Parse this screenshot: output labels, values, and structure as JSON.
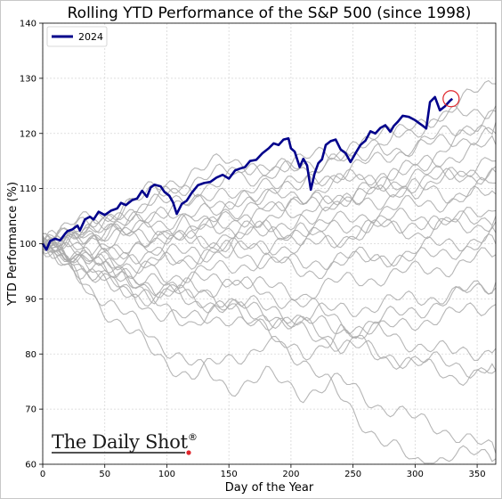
{
  "chart_data": {
    "type": "line",
    "title": "Rolling YTD Performance of the S&P 500 (since 1998)",
    "xlabel": "Day of the Year",
    "ylabel": "YTD Performance (%)",
    "xlim": [
      0,
      365
    ],
    "ylim": [
      60,
      140
    ],
    "xticks": [
      0,
      50,
      100,
      150,
      200,
      250,
      300,
      350
    ],
    "yticks": [
      60,
      70,
      80,
      90,
      100,
      110,
      120,
      130,
      140
    ],
    "grid": true,
    "legend": {
      "placement": "top-left",
      "entries": [
        "2024"
      ]
    },
    "highlight_series": {
      "name": "2024",
      "color": "#00008b",
      "x": [
        0,
        3,
        6,
        10,
        14,
        18,
        20,
        24,
        28,
        30,
        34,
        38,
        41,
        45,
        50,
        55,
        60,
        63,
        67,
        72,
        76,
        80,
        84,
        87,
        90,
        95,
        98,
        102,
        105,
        108,
        112,
        116,
        120,
        125,
        130,
        135,
        140,
        145,
        150,
        155,
        160,
        163,
        167,
        172,
        177,
        182,
        186,
        190,
        194,
        198,
        200,
        203,
        207,
        210,
        213,
        216,
        219,
        222,
        225,
        228,
        232,
        236,
        240,
        244,
        248,
        252,
        256,
        260,
        264,
        268,
        272,
        276,
        280,
        283,
        286,
        290,
        295,
        300,
        305,
        309,
        312,
        316,
        320,
        324,
        328,
        330
      ],
      "y": [
        100,
        98.9,
        100.5,
        100.9,
        100.6,
        101.8,
        102.3,
        102.6,
        103.3,
        102.4,
        104.4,
        104.9,
        104.4,
        105.8,
        105.2,
        106.0,
        106.4,
        107.4,
        107.0,
        107.9,
        108.2,
        109.6,
        108.5,
        110.2,
        110.7,
        110.4,
        109.4,
        108.7,
        107.5,
        105.4,
        107.2,
        107.8,
        109.2,
        110.6,
        111.0,
        111.2,
        112.0,
        112.5,
        111.8,
        113.3,
        113.7,
        113.9,
        115.0,
        115.2,
        116.4,
        117.3,
        118.2,
        117.9,
        118.9,
        119.1,
        117.3,
        116.7,
        113.9,
        115.4,
        114.2,
        109.8,
        112.7,
        114.6,
        115.3,
        117.9,
        118.6,
        118.9,
        117.1,
        116.4,
        114.8,
        116.4,
        117.9,
        118.7,
        120.4,
        120.0,
        121.0,
        121.5,
        120.3,
        121.4,
        122.1,
        123.2,
        123.0,
        122.4,
        121.6,
        120.9,
        125.7,
        126.6,
        124.2,
        124.9,
        125.9,
        126.3
      ]
    },
    "background_series": [
      {
        "x": [
          0,
          30,
          60,
          90,
          120,
          150,
          180,
          210,
          240,
          270,
          300,
          330,
          365
        ],
        "y": [
          100,
          101,
          103,
          104,
          105,
          106,
          108,
          109,
          111,
          112,
          114,
          116,
          118
        ]
      },
      {
        "x": [
          0,
          30,
          60,
          90,
          120,
          150,
          180,
          210,
          240,
          270,
          300,
          330,
          365
        ],
        "y": [
          100,
          103,
          104,
          106,
          107,
          108,
          110,
          112,
          115,
          118,
          121,
          125,
          129
        ]
      },
      {
        "x": [
          0,
          30,
          60,
          90,
          120,
          150,
          180,
          210,
          240,
          270,
          300,
          330,
          365
        ],
        "y": [
          100,
          98,
          97,
          99,
          101,
          100,
          103,
          105,
          108,
          110,
          114,
          118,
          122
        ]
      },
      {
        "x": [
          0,
          30,
          60,
          90,
          120,
          150,
          180,
          210,
          240,
          270,
          300,
          330,
          365
        ],
        "y": [
          100,
          102,
          105,
          108,
          110,
          112,
          114,
          115,
          117,
          119,
          121,
          123,
          125
        ]
      },
      {
        "x": [
          0,
          30,
          60,
          90,
          120,
          150,
          180,
          210,
          240,
          270,
          300,
          330,
          365
        ],
        "y": [
          100,
          101,
          99,
          100,
          103,
          104,
          105,
          107,
          108,
          109,
          111,
          112,
          113
        ]
      },
      {
        "x": [
          0,
          30,
          60,
          90,
          120,
          150,
          180,
          210,
          240,
          270,
          300,
          330,
          365
        ],
        "y": [
          100,
          104,
          106,
          109,
          111,
          113,
          112,
          114,
          116,
          118,
          117,
          119,
          120
        ]
      },
      {
        "x": [
          0,
          30,
          60,
          90,
          120,
          150,
          180,
          210,
          240,
          270,
          300,
          330,
          365
        ],
        "y": [
          100,
          99,
          101,
          103,
          102,
          104,
          106,
          105,
          107,
          108,
          110,
          109,
          111
        ]
      },
      {
        "x": [
          0,
          30,
          60,
          90,
          120,
          150,
          180,
          210,
          240,
          270,
          300,
          330,
          365
        ],
        "y": [
          100,
          102,
          101,
          102,
          104,
          103,
          101,
          103,
          104,
          106,
          107,
          108,
          109
        ]
      },
      {
        "x": [
          0,
          30,
          60,
          90,
          120,
          150,
          180,
          210,
          240,
          270,
          300,
          330,
          365
        ],
        "y": [
          100,
          100,
          102,
          101,
          100,
          102,
          103,
          101,
          103,
          104,
          105,
          104,
          106
        ]
      },
      {
        "x": [
          0,
          30,
          60,
          90,
          120,
          150,
          180,
          210,
          240,
          270,
          300,
          330,
          365
        ],
        "y": [
          100,
          98,
          96,
          97,
          99,
          98,
          100,
          99,
          101,
          103,
          102,
          104,
          105
        ]
      },
      {
        "x": [
          0,
          30,
          60,
          90,
          120,
          150,
          180,
          210,
          240,
          270,
          300,
          330,
          365
        ],
        "y": [
          100,
          97,
          95,
          96,
          98,
          99,
          100,
          102,
          101,
          103,
          104,
          103,
          104
        ]
      },
      {
        "x": [
          0,
          30,
          60,
          90,
          120,
          150,
          180,
          210,
          240,
          270,
          300,
          330,
          365
        ],
        "y": [
          100,
          101,
          100,
          98,
          97,
          99,
          97,
          96,
          98,
          97,
          99,
          100,
          102
        ]
      },
      {
        "x": [
          0,
          30,
          60,
          90,
          120,
          150,
          180,
          210,
          240,
          270,
          300,
          330,
          365
        ],
        "y": [
          100,
          99,
          97,
          95,
          94,
          96,
          97,
          95,
          96,
          98,
          97,
          99,
          100
        ]
      },
      {
        "x": [
          0,
          30,
          60,
          90,
          120,
          150,
          180,
          210,
          240,
          270,
          300,
          330,
          365
        ],
        "y": [
          100,
          96,
          94,
          92,
          93,
          94,
          92,
          91,
          93,
          94,
          95,
          96,
          98
        ]
      },
      {
        "x": [
          0,
          30,
          60,
          90,
          120,
          150,
          180,
          210,
          240,
          270,
          300,
          330,
          365
        ],
        "y": [
          100,
          97,
          94,
          91,
          92,
          90,
          88,
          87,
          88,
          89,
          90,
          91,
          92
        ]
      },
      {
        "x": [
          0,
          30,
          60,
          90,
          120,
          150,
          180,
          210,
          240,
          270,
          300,
          330,
          365
        ],
        "y": [
          100,
          95,
          92,
          90,
          91,
          93,
          91,
          89,
          86,
          84,
          86,
          87,
          89
        ]
      },
      {
        "x": [
          0,
          30,
          60,
          90,
          120,
          150,
          180,
          210,
          240,
          270,
          300,
          330,
          365
        ],
        "y": [
          100,
          97,
          95,
          93,
          90,
          88,
          87,
          85,
          82,
          84,
          82,
          80,
          81
        ]
      },
      {
        "x": [
          0,
          30,
          60,
          90,
          120,
          150,
          180,
          210,
          240,
          270,
          300,
          330,
          365
        ],
        "y": [
          100,
          96,
          93,
          89,
          86,
          88,
          86,
          84,
          82,
          80,
          79,
          78,
          77
        ]
      },
      {
        "x": [
          0,
          30,
          60,
          90,
          120,
          150,
          180,
          210,
          240,
          270,
          300,
          330,
          365
        ],
        "y": [
          100,
          93,
          86,
          80,
          76,
          79,
          82,
          80,
          84,
          80,
          78,
          76,
          77
        ]
      },
      {
        "x": [
          0,
          30,
          60,
          90,
          120,
          150,
          180,
          210,
          240,
          270,
          300,
          330,
          365
        ],
        "y": [
          100,
          94,
          88,
          83,
          78,
          74,
          76,
          73,
          75,
          71,
          68,
          66,
          62
        ]
      },
      {
        "x": [
          0,
          30,
          60,
          90,
          120,
          150,
          180,
          210,
          240,
          270,
          300,
          330,
          365
        ],
        "y": [
          100,
          96,
          92,
          88,
          86,
          87,
          84,
          79,
          72,
          65,
          60,
          62,
          61
        ]
      },
      {
        "x": [
          0,
          30,
          60,
          90,
          120,
          150,
          180,
          210,
          240,
          270,
          300,
          330,
          365
        ],
        "y": [
          100,
          98,
          95,
          92,
          90,
          89,
          87,
          86,
          84,
          86,
          88,
          90,
          93
        ]
      },
      {
        "x": [
          0,
          30,
          60,
          90,
          120,
          150,
          180,
          210,
          240,
          270,
          300,
          330,
          365
        ],
        "y": [
          100,
          102,
          103,
          105,
          104,
          106,
          108,
          107,
          109,
          111,
          110,
          112,
          114
        ]
      },
      {
        "x": [
          0,
          30,
          60,
          90,
          120,
          150,
          180,
          210,
          240,
          270,
          300,
          330,
          365
        ],
        "y": [
          100,
          101,
          104,
          107,
          109,
          108,
          110,
          111,
          113,
          115,
          118,
          120,
          124
        ]
      },
      {
        "x": [
          0,
          30,
          60,
          90,
          120,
          150,
          180,
          210,
          240,
          270,
          300,
          330,
          365
        ],
        "y": [
          100,
          103,
          106,
          110,
          113,
          115,
          114,
          113,
          112,
          111,
          112,
          113,
          115
        ]
      }
    ],
    "annotation": {
      "type": "circle",
      "x": 329,
      "y": 126.3,
      "color": "#e0262b"
    }
  },
  "logo": {
    "text": "The Daily Shot",
    "mark": "®",
    "dot_color": "#e0262b"
  },
  "colors": {
    "background_line": "#a9a9a9",
    "grid": "#d6d6d6"
  }
}
